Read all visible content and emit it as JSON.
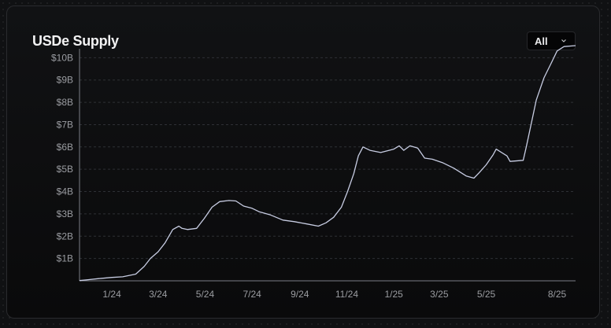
{
  "card": {
    "title": "USDe Supply",
    "range_selector": {
      "selected": "All",
      "icon": "chevron-down-icon"
    }
  },
  "colors": {
    "line": "#c7cce2",
    "grid": "#2e3035",
    "axis": "#7b7e86",
    "tick_text": "#9a9ca1"
  },
  "chart_data": {
    "type": "line",
    "title": "USDe Supply",
    "xlabel": "",
    "ylabel": "",
    "x_range": [
      "2023-11-20",
      "2025-08-25"
    ],
    "ylim": [
      0,
      10.4
    ],
    "y_unit": "billions of USD",
    "y_ticks": [
      {
        "value": 1,
        "label": "$1B"
      },
      {
        "value": 2,
        "label": "$2B"
      },
      {
        "value": 3,
        "label": "$3B"
      },
      {
        "value": 4,
        "label": "$4B"
      },
      {
        "value": 5,
        "label": "$5B"
      },
      {
        "value": 6,
        "label": "$6B"
      },
      {
        "value": 7,
        "label": "$7B"
      },
      {
        "value": 8,
        "label": "$8B"
      },
      {
        "value": 9,
        "label": "$9B"
      },
      {
        "value": 10,
        "label": "$10B"
      }
    ],
    "x_ticks": [
      {
        "date": "2024-01-01",
        "label": "1/24"
      },
      {
        "date": "2024-03-01",
        "label": "3/24"
      },
      {
        "date": "2024-05-01",
        "label": "5/24"
      },
      {
        "date": "2024-07-01",
        "label": "7/24"
      },
      {
        "date": "2024-09-01",
        "label": "9/24"
      },
      {
        "date": "2024-11-01",
        "label": "11/24"
      },
      {
        "date": "2025-01-01",
        "label": "1/25"
      },
      {
        "date": "2025-03-01",
        "label": "3/25"
      },
      {
        "date": "2025-05-01",
        "label": "5/25"
      },
      {
        "date": "2025-08-01",
        "label": "8/25"
      }
    ],
    "grid": "horizontal dashed",
    "legend": "none",
    "series": [
      {
        "x": [
          "2023-11-20",
          "2023-12-01",
          "2023-12-15",
          "2024-01-01",
          "2024-01-15",
          "2024-02-01",
          "2024-02-12",
          "2024-02-20",
          "2024-03-01",
          "2024-03-10",
          "2024-03-20",
          "2024-03-28",
          "2024-04-01",
          "2024-04-08",
          "2024-04-20",
          "2024-04-30",
          "2024-05-10",
          "2024-05-20",
          "2024-06-01",
          "2024-06-10",
          "2024-06-20",
          "2024-07-01",
          "2024-07-10",
          "2024-07-25",
          "2024-08-10",
          "2024-08-25",
          "2024-09-10",
          "2024-09-25",
          "2024-10-05",
          "2024-10-15",
          "2024-10-25",
          "2024-11-02",
          "2024-11-10",
          "2024-11-16",
          "2024-11-22",
          "2024-12-01",
          "2024-12-15",
          "2025-01-01",
          "2025-01-08",
          "2025-01-14",
          "2025-01-22",
          "2025-02-01",
          "2025-02-10",
          "2025-02-20",
          "2025-03-05",
          "2025-03-20",
          "2025-04-05",
          "2025-04-15",
          "2025-04-22",
          "2025-05-01",
          "2025-05-10",
          "2025-05-14",
          "2025-05-28",
          "2025-06-01",
          "2025-06-18",
          "2025-06-22",
          "2025-07-05",
          "2025-07-15",
          "2025-07-25",
          "2025-08-01",
          "2025-08-10",
          "2025-08-25"
        ],
        "values": [
          0.01,
          0.05,
          0.1,
          0.15,
          0.18,
          0.3,
          0.65,
          1.0,
          1.3,
          1.7,
          2.3,
          2.45,
          2.35,
          2.3,
          2.35,
          2.8,
          3.3,
          3.55,
          3.6,
          3.58,
          3.35,
          3.25,
          3.1,
          2.95,
          2.72,
          2.65,
          2.55,
          2.45,
          2.6,
          2.85,
          3.3,
          4.0,
          4.8,
          5.6,
          6.0,
          5.85,
          5.75,
          5.9,
          6.05,
          5.85,
          6.05,
          5.95,
          5.5,
          5.45,
          5.3,
          5.05,
          4.7,
          4.6,
          4.85,
          5.2,
          5.65,
          5.9,
          5.6,
          5.35,
          5.4,
          6.0,
          8.1,
          9.1,
          9.8,
          10.3,
          10.5,
          10.8
        ]
      }
    ]
  }
}
